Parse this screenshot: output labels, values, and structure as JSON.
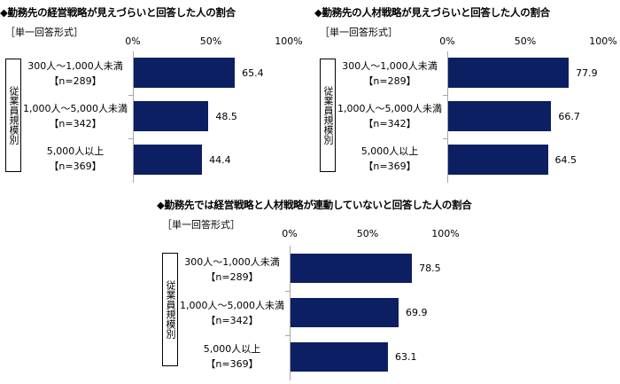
{
  "charts": [
    {
      "title": "◆勤務先の経営戦略が見えづらいと回答した人の割合",
      "format": "［単一回答形式］",
      "group_label": "従業員規模別",
      "ticks": [
        "0%",
        "50%",
        "100%"
      ],
      "categories": [
        {
          "label": "300人～1,000人未満",
          "n": "【n=289】"
        },
        {
          "label": "1,000人～5,000人未満",
          "n": "【n=342】"
        },
        {
          "label": "5,000人以上",
          "n": "【n=369】"
        }
      ]
    },
    {
      "title": "◆勤務先の人材戦略が見えづらいと回答した人の割合",
      "format": "［単一回答形式］",
      "group_label": "従業員規模別",
      "ticks": [
        "0%",
        "50%",
        "100%"
      ],
      "categories": [
        {
          "label": "300人～1,000人未満",
          "n": "【n=289】"
        },
        {
          "label": "1,000人～5,000人未満",
          "n": "【n=342】"
        },
        {
          "label": "5,000人以上",
          "n": "【n=369】"
        }
      ]
    },
    {
      "title": "◆勤務先では経営戦略と人材戦略が連動していないと回答した人の割合",
      "format": "［単一回答形式］",
      "group_label": "従業員規模別",
      "ticks": [
        "0%",
        "50%",
        "100%"
      ],
      "categories": [
        {
          "label": "300人～1,000人未満",
          "n": "【n=289】"
        },
        {
          "label": "1,000人～5,000人未満",
          "n": "【n=342】"
        },
        {
          "label": "5,000人以上",
          "n": "【n=369】"
        }
      ]
    }
  ],
  "chart_data": [
    {
      "type": "bar",
      "orientation": "horizontal",
      "title": "◆勤務先の経営戦略が見えづらいと回答した人の割合",
      "categories": [
        "300人～1,000人未満【n=289】",
        "1,000人～5,000人未満【n=342】",
        "5,000人以上【n=369】"
      ],
      "values": [
        65.4,
        48.5,
        44.4
      ],
      "value_labels": [
        "65.4",
        "48.5",
        "44.4"
      ],
      "xlim": [
        0,
        100
      ],
      "bar_color": "#0b1f62"
    },
    {
      "type": "bar",
      "orientation": "horizontal",
      "title": "◆勤務先の人材戦略が見えづらいと回答した人の割合",
      "categories": [
        "300人～1,000人未満【n=289】",
        "1,000人～5,000人未満【n=342】",
        "5,000人以上【n=369】"
      ],
      "values": [
        77.9,
        66.7,
        64.5
      ],
      "value_labels": [
        "77.9",
        "66.7",
        "64.5"
      ],
      "xlim": [
        0,
        100
      ],
      "bar_color": "#0b1f62"
    },
    {
      "type": "bar",
      "orientation": "horizontal",
      "title": "◆勤務先では経営戦略と人材戦略が連動していないと回答した人の割合",
      "categories": [
        "300人～1,000人未満【n=289】",
        "1,000人～5,000人未満【n=342】",
        "5,000人以上【n=369】"
      ],
      "values": [
        78.5,
        69.9,
        63.1
      ],
      "value_labels": [
        "78.5",
        "69.9",
        "63.1"
      ],
      "xlim": [
        0,
        100
      ],
      "bar_color": "#0b1f62"
    }
  ]
}
